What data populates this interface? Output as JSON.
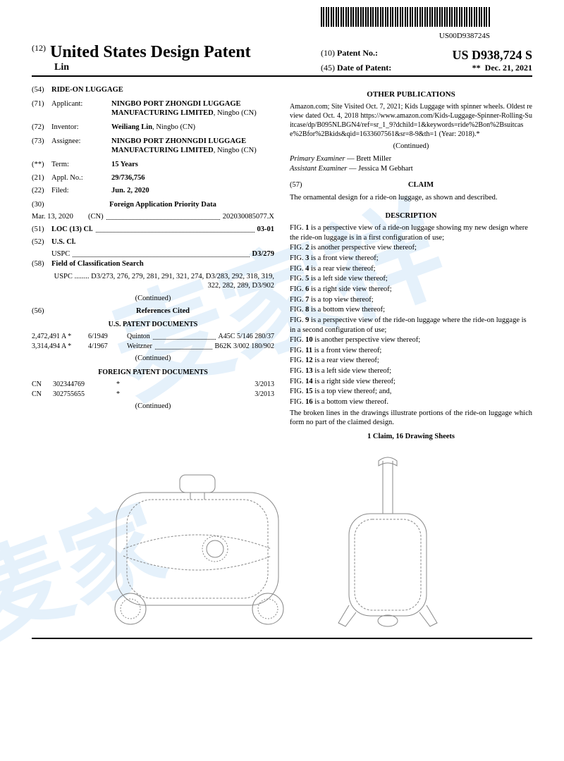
{
  "barcode_number": "US00D938724S",
  "header": {
    "country_code": "(12)",
    "country": "United States Design Patent",
    "inventor_line": "Lin",
    "patent_no_code": "(10)",
    "patent_no_label": "Patent No.:",
    "patent_no": "US D938,724 S",
    "date_code": "(45)",
    "date_label": "Date of Patent:",
    "date_note": "**",
    "date": "Dec. 21, 2021"
  },
  "left": {
    "title_code": "(54)",
    "title": "RIDE-ON LUGGAGE",
    "applicant_code": "(71)",
    "applicant_label": "Applicant:",
    "applicant": "NINGBO PORT ZHONGDI LUGGAGE MANUFACTURING LIMITED",
    "applicant_loc": ", Ningbo (CN)",
    "inventor_code": "(72)",
    "inventor_label": "Inventor:",
    "inventor": "Weiliang Lin",
    "inventor_loc": ", Ningbo (CN)",
    "assignee_code": "(73)",
    "assignee_label": "Assignee:",
    "assignee": "NINGBO PORT ZHONNGDI LUGGAGE MANUFACTURING LIMITED",
    "assignee_loc": ", Ningbo (CN)",
    "term_code": "(**)",
    "term_label": "Term:",
    "term": "15 Years",
    "appl_code": "(21)",
    "appl_label": "Appl. No.:",
    "appl": "29/736,756",
    "filed_code": "(22)",
    "filed_label": "Filed:",
    "filed": "Jun. 2, 2020",
    "foreign_code": "(30)",
    "foreign_label": "Foreign Application Priority Data",
    "foreign_date": "Mar. 13, 2020",
    "foreign_country": "(CN)",
    "foreign_num": "202030085077.X",
    "loc_code": "(51)",
    "loc_label": "LOC (13) Cl.",
    "loc_val": "03-01",
    "uscl_code": "(52)",
    "uscl_label": "U.S. Cl.",
    "uscl_uspc_label": "USPC",
    "uscl_val": "D3/279",
    "fcs_code": "(58)",
    "fcs_label": "Field of Classification Search",
    "fcs_uspc": "USPC ........ D3/273, 276, 279, 281, 291, 321, 274, D3/283, 292, 318, 319, 322, 282, 289, D3/902",
    "continued": "(Continued)",
    "refs_code": "(56)",
    "refs_label": "References Cited",
    "us_docs_head": "U.S. PATENT DOCUMENTS",
    "us_refs": [
      {
        "num": "2,472,491 A *",
        "date": "6/1949",
        "name": "Quinton",
        "class": "A45C 5/146 280/37"
      },
      {
        "num": "3,314,494 A *",
        "date": "4/1967",
        "name": "Weitzner",
        "class": "B62K 3/002 180/902"
      }
    ],
    "foreign_docs_head": "FOREIGN PATENT DOCUMENTS",
    "foreign_refs": [
      {
        "cc": "CN",
        "num": "302344769",
        "mark": "*",
        "date": "3/2013"
      },
      {
        "cc": "CN",
        "num": "302755655",
        "mark": "*",
        "date": "3/2013"
      }
    ]
  },
  "right": {
    "other_pub_head": "OTHER PUBLICATIONS",
    "other_pub_text": "Amazon.com; Site Visited Oct. 7, 2021; Kids Luggage with spinner wheels. Oldest review dated Oct. 4, 2018 https://www.amazon.com/Kids-Luggage-Spinner-Rolling-Suitcase/dp/B095NLBGN4/ref=sr_1_9?dchild=1&keywords=ride%2Bon%2Bsuitcase%2Bfor%2Bkids&qid=1633607561&sr=8-9&th=1 (Year: 2018).*",
    "continued": "(Continued)",
    "primary_label": "Primary Examiner",
    "primary": "— Brett Miller",
    "assistant_label": "Assistant Examiner",
    "assistant": "— Jessica M Gebhart",
    "claim_code": "(57)",
    "claim_head": "CLAIM",
    "claim_text": "The ornamental design for a ride-on luggage, as shown and described.",
    "desc_head": "DESCRIPTION",
    "figs": [
      "FIG. 1 is a perspective view of a ride-on luggage showing my new design where the ride-on luggage is in a first configuration of use;",
      "FIG. 2 is another perspective view thereof;",
      "FIG. 3 is a front view thereof;",
      "FIG. 4 is a rear view thereof;",
      "FIG. 5 is a left side view thereof;",
      "FIG. 6 is a right side view thereof;",
      "FIG. 7 is a top view thereof;",
      "FIG. 8 is a bottom view thereof;",
      "FIG. 9 is a perspective view of the ride-on luggage where the ride-on luggage is in a second configuration of use;",
      "FIG. 10 is another perspective view thereof;",
      "FIG. 11 is a front view thereof;",
      "FIG. 12 is a rear view thereof;",
      "FIG. 13 is a left side view thereof;",
      "FIG. 14 is a right side view thereof;",
      "FIG. 15 is a top view thereof; and,",
      "FIG. 16 is a bottom view thereof."
    ],
    "broken_lines": "The broken lines in the drawings illustrate portions of the ride-on luggage which form no part of the claimed design.",
    "footer_claim": "1 Claim, 16 Drawing Sheets"
  },
  "drawing": {
    "stroke": "#666",
    "stroke_width": 1,
    "dash": "3,2"
  }
}
